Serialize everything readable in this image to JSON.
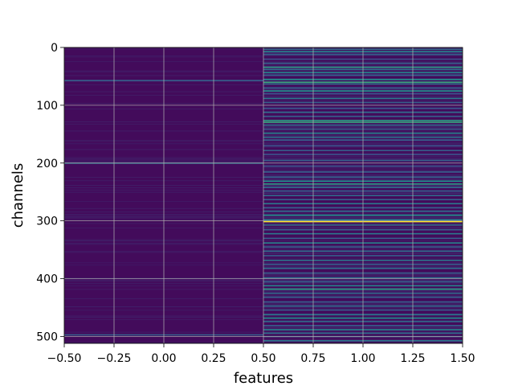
{
  "chart_data": {
    "type": "heatmap",
    "xlabel": "features",
    "ylabel": "channels",
    "xlim": [
      -0.5,
      1.5
    ],
    "ylim": [
      512,
      0
    ],
    "xticks": [
      -0.5,
      -0.25,
      0.0,
      0.25,
      0.5,
      0.75,
      1.0,
      1.25,
      1.5
    ],
    "xtick_labels": [
      "−0.50",
      "−0.25",
      "0.00",
      "0.25",
      "0.50",
      "0.75",
      "1.00",
      "1.25",
      "1.50"
    ],
    "yticks": [
      0,
      100,
      200,
      300,
      400,
      500
    ],
    "ytick_labels": [
      "0",
      "100",
      "200",
      "300",
      "400",
      "500"
    ],
    "columns": [
      0,
      1
    ],
    "n_rows": 512,
    "colormap": "viridis",
    "grid": true,
    "column_0_highlights": [
      {
        "row": 57,
        "value": 0.3
      },
      {
        "row": 200,
        "value": 0.35
      },
      {
        "row": 497,
        "value": 0.3
      }
    ],
    "column_1_highlights": [
      {
        "row": 3,
        "value": 0.35
      },
      {
        "row": 7,
        "value": 0.45
      },
      {
        "row": 12,
        "value": 0.3
      },
      {
        "row": 20,
        "value": 0.25
      },
      {
        "row": 27,
        "value": 0.3
      },
      {
        "row": 34,
        "value": 0.55
      },
      {
        "row": 38,
        "value": 0.35
      },
      {
        "row": 43,
        "value": 0.45
      },
      {
        "row": 48,
        "value": 0.3
      },
      {
        "row": 55,
        "value": 0.5
      },
      {
        "row": 60,
        "value": 0.6
      },
      {
        "row": 63,
        "value": 0.35
      },
      {
        "row": 70,
        "value": 0.3
      },
      {
        "row": 75,
        "value": 0.5
      },
      {
        "row": 80,
        "value": 0.25
      },
      {
        "row": 88,
        "value": 0.4
      },
      {
        "row": 95,
        "value": 0.3
      },
      {
        "row": 105,
        "value": 0.25
      },
      {
        "row": 112,
        "value": 0.35
      },
      {
        "row": 119,
        "value": 0.3
      },
      {
        "row": 126,
        "value": 0.55
      },
      {
        "row": 129,
        "value": 0.6
      },
      {
        "row": 134,
        "value": 0.35
      },
      {
        "row": 141,
        "value": 0.3
      },
      {
        "row": 148,
        "value": 0.45
      },
      {
        "row": 155,
        "value": 0.4
      },
      {
        "row": 160,
        "value": 0.3
      },
      {
        "row": 170,
        "value": 0.25
      },
      {
        "row": 178,
        "value": 0.3
      },
      {
        "row": 185,
        "value": 0.25
      },
      {
        "row": 195,
        "value": 0.3
      },
      {
        "row": 205,
        "value": 0.25
      },
      {
        "row": 215,
        "value": 0.3
      },
      {
        "row": 224,
        "value": 0.3
      },
      {
        "row": 231,
        "value": 0.5
      },
      {
        "row": 236,
        "value": 0.55
      },
      {
        "row": 242,
        "value": 0.35
      },
      {
        "row": 248,
        "value": 0.3
      },
      {
        "row": 256,
        "value": 0.35
      },
      {
        "row": 263,
        "value": 0.3
      },
      {
        "row": 270,
        "value": 0.4
      },
      {
        "row": 277,
        "value": 0.3
      },
      {
        "row": 283,
        "value": 0.35
      },
      {
        "row": 290,
        "value": 0.5
      },
      {
        "row": 298,
        "value": 0.45
      },
      {
        "row": 301,
        "value": 1.0
      },
      {
        "row": 307,
        "value": 0.35
      },
      {
        "row": 315,
        "value": 0.3
      },
      {
        "row": 322,
        "value": 0.4
      },
      {
        "row": 330,
        "value": 0.3
      },
      {
        "row": 338,
        "value": 0.45
      },
      {
        "row": 345,
        "value": 0.3
      },
      {
        "row": 352,
        "value": 0.35
      },
      {
        "row": 360,
        "value": 0.3
      },
      {
        "row": 368,
        "value": 0.4
      },
      {
        "row": 375,
        "value": 0.3
      },
      {
        "row": 382,
        "value": 0.35
      },
      {
        "row": 390,
        "value": 0.3
      },
      {
        "row": 398,
        "value": 0.35
      },
      {
        "row": 405,
        "value": 0.3
      },
      {
        "row": 412,
        "value": 0.45
      },
      {
        "row": 418,
        "value": 0.55
      },
      {
        "row": 425,
        "value": 0.35
      },
      {
        "row": 432,
        "value": 0.3
      },
      {
        "row": 440,
        "value": 0.3
      },
      {
        "row": 447,
        "value": 0.35
      },
      {
        "row": 454,
        "value": 0.3
      },
      {
        "row": 462,
        "value": 0.4
      },
      {
        "row": 468,
        "value": 0.5
      },
      {
        "row": 474,
        "value": 0.35
      },
      {
        "row": 481,
        "value": 0.3
      },
      {
        "row": 488,
        "value": 0.45
      },
      {
        "row": 494,
        "value": 0.35
      },
      {
        "row": 500,
        "value": 0.3
      },
      {
        "row": 507,
        "value": 0.4
      }
    ]
  }
}
